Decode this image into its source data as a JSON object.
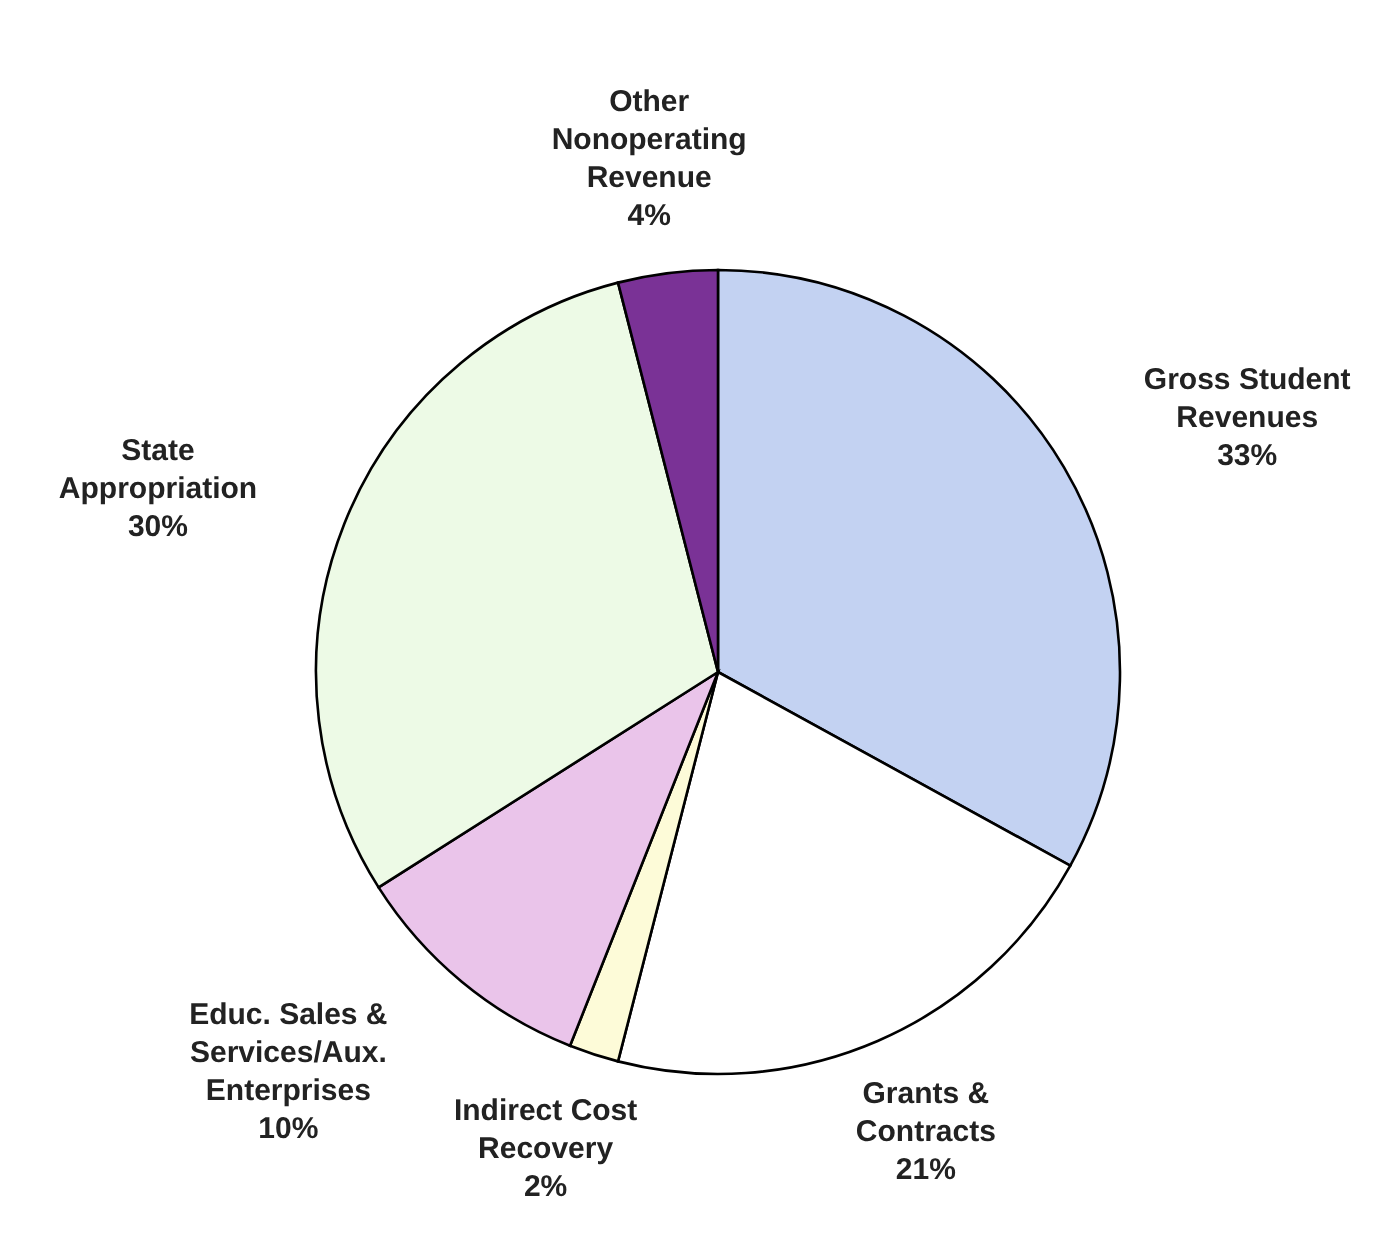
{
  "chart_data": {
    "type": "pie",
    "categories": [
      "Gross Student\nRevenues",
      "Grants &\nContracts",
      "Indirect Cost\nRecovery",
      "Educ. Sales &\nServices/Aux.\nEnterprises",
      "State\nAppropriation",
      "Other\nNonoperating\nRevenue"
    ],
    "values": [
      33,
      21,
      2,
      10,
      30,
      4
    ],
    "value_labels": [
      "33%",
      "21%",
      "2%",
      "10%",
      "30%",
      "4%"
    ],
    "colors": [
      "#c3d2f2",
      "#ffffff",
      "#fdfbd8",
      "#eac4ea",
      "#edfae6",
      "#7a3296"
    ],
    "legend": false
  }
}
